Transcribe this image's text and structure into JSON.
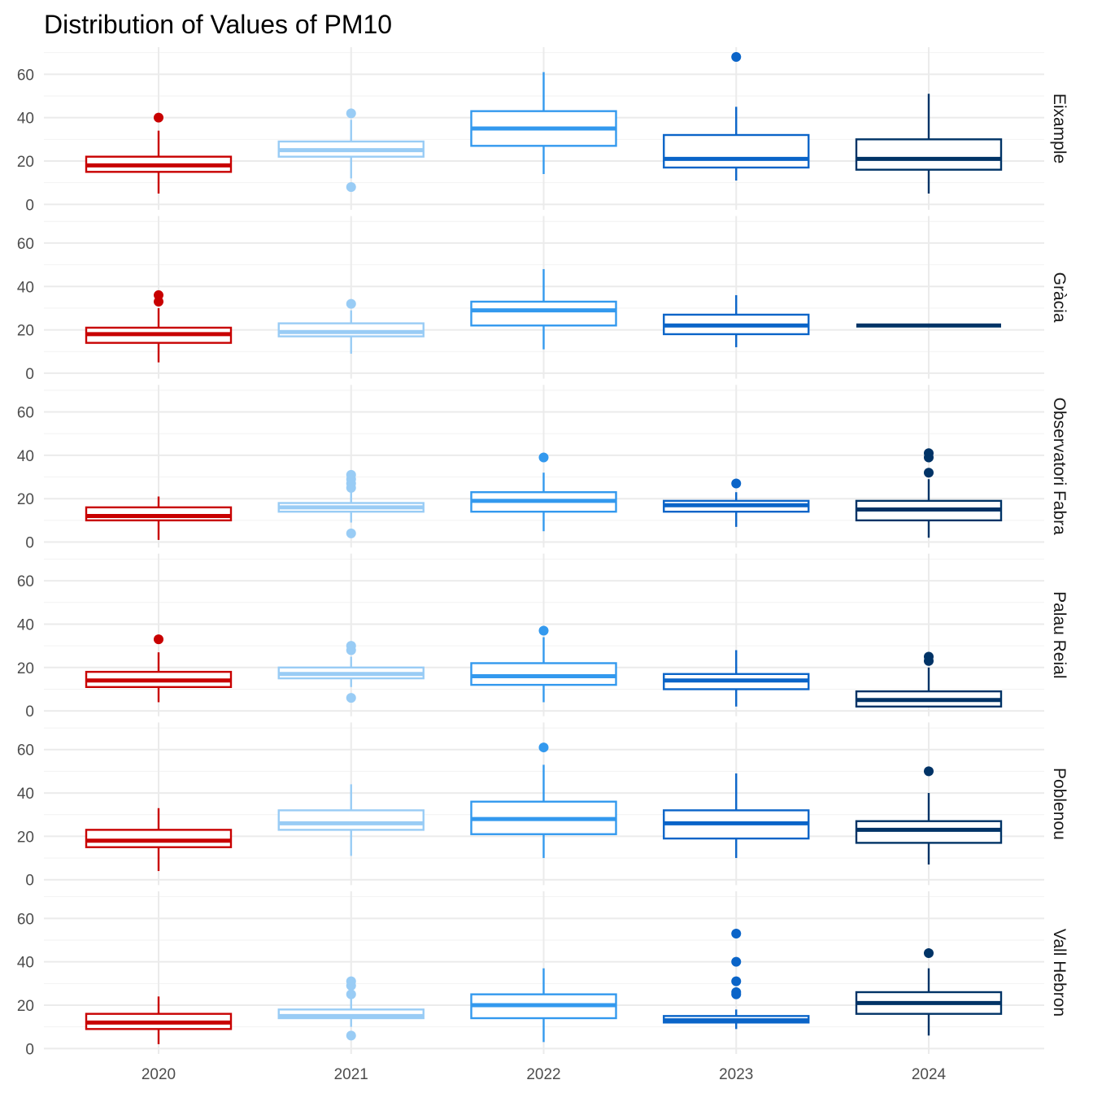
{
  "chart_data": {
    "type": "boxplot",
    "title": "Distribution of Values of PM10",
    "xlabel": "",
    "ylabel": "",
    "categories": [
      "2020",
      "2021",
      "2022",
      "2023",
      "2024"
    ],
    "colors": {
      "2020": "#c80000",
      "2021": "#99ccf5",
      "2022": "#3399ee",
      "2023": "#0a64c8",
      "2024": "#003366"
    },
    "ylim": [
      0,
      70
    ],
    "yticks": [
      0,
      20,
      40,
      60
    ],
    "grid": true,
    "legend": "none",
    "facets": [
      {
        "name": "Eixample",
        "boxes": [
          {
            "year": "2020",
            "min": 5,
            "q1": 15,
            "median": 18,
            "q3": 22,
            "max": 34,
            "outliers": [
              40
            ]
          },
          {
            "year": "2021",
            "min": 12,
            "q1": 22,
            "median": 25,
            "q3": 29,
            "max": 39,
            "outliers": [
              42,
              8
            ]
          },
          {
            "year": "2022",
            "min": 14,
            "q1": 27,
            "median": 35,
            "q3": 43,
            "max": 61,
            "outliers": []
          },
          {
            "year": "2023",
            "min": 11,
            "q1": 17,
            "median": 21,
            "q3": 32,
            "max": 45,
            "outliers": [
              68
            ]
          },
          {
            "year": "2024",
            "min": 5,
            "q1": 16,
            "median": 21,
            "q3": 30,
            "max": 51,
            "outliers": []
          }
        ]
      },
      {
        "name": "Gràcia",
        "boxes": [
          {
            "year": "2020",
            "min": 5,
            "q1": 14,
            "median": 18,
            "q3": 21,
            "max": 30,
            "outliers": [
              36,
              33
            ]
          },
          {
            "year": "2021",
            "min": 9,
            "q1": 17,
            "median": 19,
            "q3": 23,
            "max": 29,
            "outliers": [
              32
            ]
          },
          {
            "year": "2022",
            "min": 11,
            "q1": 22,
            "median": 29,
            "q3": 33,
            "max": 48,
            "outliers": []
          },
          {
            "year": "2023",
            "min": 12,
            "q1": 18,
            "median": 22,
            "q3": 27,
            "max": 36,
            "outliers": []
          },
          {
            "year": "2024",
            "min": 22,
            "q1": 22,
            "median": 22,
            "q3": 22,
            "max": 22,
            "outliers": []
          }
        ]
      },
      {
        "name": "Observatori Fabra",
        "boxes": [
          {
            "year": "2020",
            "min": 1,
            "q1": 10,
            "median": 12,
            "q3": 16,
            "max": 21,
            "outliers": []
          },
          {
            "year": "2021",
            "min": 9,
            "q1": 14,
            "median": 16,
            "q3": 18,
            "max": 23,
            "outliers": [
              31,
              29,
              27,
              25,
              4
            ]
          },
          {
            "year": "2022",
            "min": 5,
            "q1": 14,
            "median": 19,
            "q3": 23,
            "max": 32,
            "outliers": [
              39
            ]
          },
          {
            "year": "2023",
            "min": 7,
            "q1": 14,
            "median": 17,
            "q3": 19,
            "max": 23,
            "outliers": [
              27
            ]
          },
          {
            "year": "2024",
            "min": 2,
            "q1": 10,
            "median": 15,
            "q3": 19,
            "max": 29,
            "outliers": [
              41,
              39,
              32
            ]
          }
        ]
      },
      {
        "name": "Palau Reial",
        "boxes": [
          {
            "year": "2020",
            "min": 4,
            "q1": 11,
            "median": 14,
            "q3": 18,
            "max": 27,
            "outliers": [
              33
            ]
          },
          {
            "year": "2021",
            "min": 11,
            "q1": 15,
            "median": 17,
            "q3": 20,
            "max": 25,
            "outliers": [
              30,
              28,
              6
            ]
          },
          {
            "year": "2022",
            "min": 4,
            "q1": 12,
            "median": 16,
            "q3": 22,
            "max": 34,
            "outliers": [
              37
            ]
          },
          {
            "year": "2023",
            "min": 2,
            "q1": 10,
            "median": 14,
            "q3": 17,
            "max": 28,
            "outliers": []
          },
          {
            "year": "2024",
            "min": 2,
            "q1": 2,
            "median": 5,
            "q3": 9,
            "max": 20,
            "outliers": [
              25,
              23
            ]
          }
        ]
      },
      {
        "name": "Poblenou",
        "boxes": [
          {
            "year": "2020",
            "min": 4,
            "q1": 15,
            "median": 18,
            "q3": 23,
            "max": 33,
            "outliers": []
          },
          {
            "year": "2021",
            "min": 11,
            "q1": 23,
            "median": 26,
            "q3": 32,
            "max": 44,
            "outliers": []
          },
          {
            "year": "2022",
            "min": 10,
            "q1": 21,
            "median": 28,
            "q3": 36,
            "max": 53,
            "outliers": [
              61
            ]
          },
          {
            "year": "2023",
            "min": 10,
            "q1": 19,
            "median": 26,
            "q3": 32,
            "max": 49,
            "outliers": []
          },
          {
            "year": "2024",
            "min": 7,
            "q1": 17,
            "median": 23,
            "q3": 27,
            "max": 40,
            "outliers": [
              50
            ]
          }
        ]
      },
      {
        "name": "Vall Hebron",
        "boxes": [
          {
            "year": "2020",
            "min": 2,
            "q1": 9,
            "median": 12,
            "q3": 16,
            "max": 24,
            "outliers": []
          },
          {
            "year": "2021",
            "min": 10,
            "q1": 14,
            "median": 15,
            "q3": 18,
            "max": 23,
            "outliers": [
              31,
              29,
              25,
              6
            ]
          },
          {
            "year": "2022",
            "min": 3,
            "q1": 14,
            "median": 20,
            "q3": 25,
            "max": 37,
            "outliers": []
          },
          {
            "year": "2023",
            "min": 9,
            "q1": 12,
            "median": 13,
            "q3": 15,
            "max": 18,
            "outliers": [
              53,
              40,
              31,
              26,
              25
            ]
          },
          {
            "year": "2024",
            "min": 6,
            "q1": 16,
            "median": 21,
            "q3": 26,
            "max": 37,
            "outliers": [
              44
            ]
          }
        ]
      }
    ]
  }
}
